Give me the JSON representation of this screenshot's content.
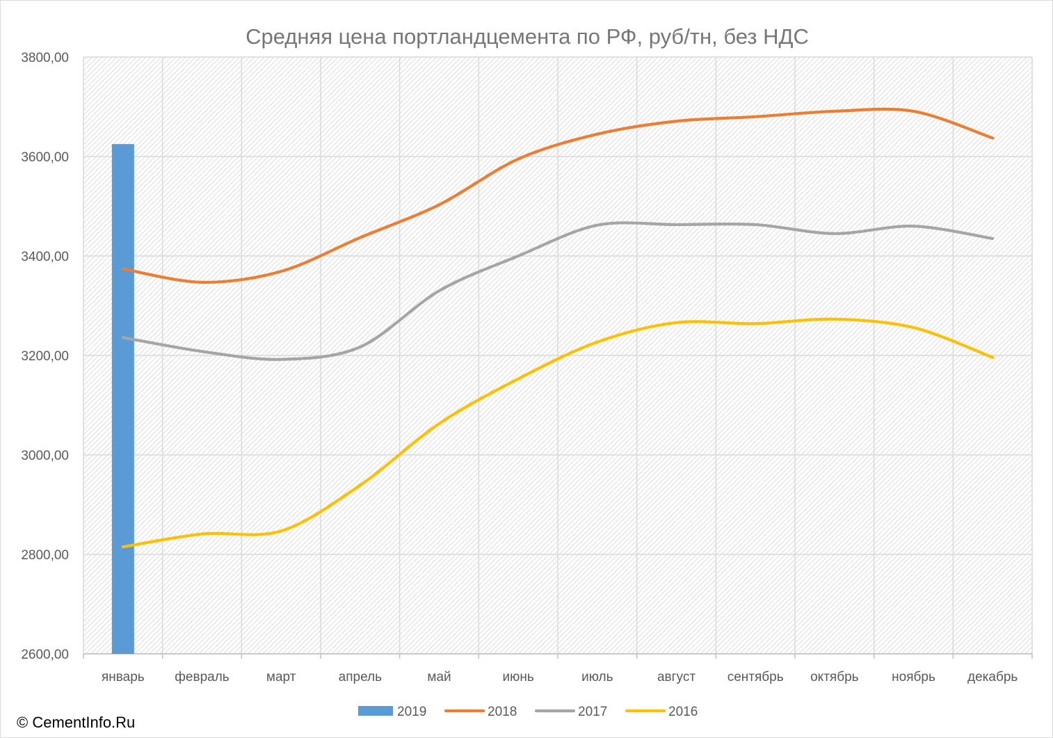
{
  "copyright": "© CementInfo.Ru",
  "chart_data": {
    "type": "line",
    "title": "Средняя цена портландцемента по РФ, руб/тн, без НДС",
    "xlabel": "",
    "ylabel": "",
    "ylim": [
      2600,
      3800
    ],
    "ytick_step": 200,
    "y_tick_labels": [
      "2600,00",
      "2800,00",
      "3000,00",
      "3200,00",
      "3400,00",
      "3600,00",
      "3800,00"
    ],
    "grid": true,
    "legend_position": "bottom",
    "categories": [
      "январь",
      "февраль",
      "март",
      "апрель",
      "май",
      "июнь",
      "июль",
      "август",
      "сентябрь",
      "октябрь",
      "ноябрь",
      "декабрь"
    ],
    "series": [
      {
        "name": "2019",
        "type": "bar",
        "color": "#5b9bd5",
        "values": [
          3625,
          null,
          null,
          null,
          null,
          null,
          null,
          null,
          null,
          null,
          null,
          null
        ]
      },
      {
        "name": "2018",
        "type": "line",
        "color": "#ed7d31",
        "values": [
          3374,
          3347,
          3369,
          3437,
          3503,
          3595,
          3645,
          3671,
          3680,
          3691,
          3691,
          3637
        ]
      },
      {
        "name": "2017",
        "type": "line",
        "color": "#a5a5a5",
        "values": [
          3236,
          3208,
          3192,
          3217,
          3330,
          3400,
          3462,
          3463,
          3463,
          3445,
          3460,
          3435
        ]
      },
      {
        "name": "2016",
        "type": "line",
        "color": "#ffc000",
        "values": [
          2815,
          2841,
          2847,
          2939,
          3063,
          3153,
          3227,
          3266,
          3264,
          3273,
          3256,
          3196
        ]
      }
    ]
  }
}
